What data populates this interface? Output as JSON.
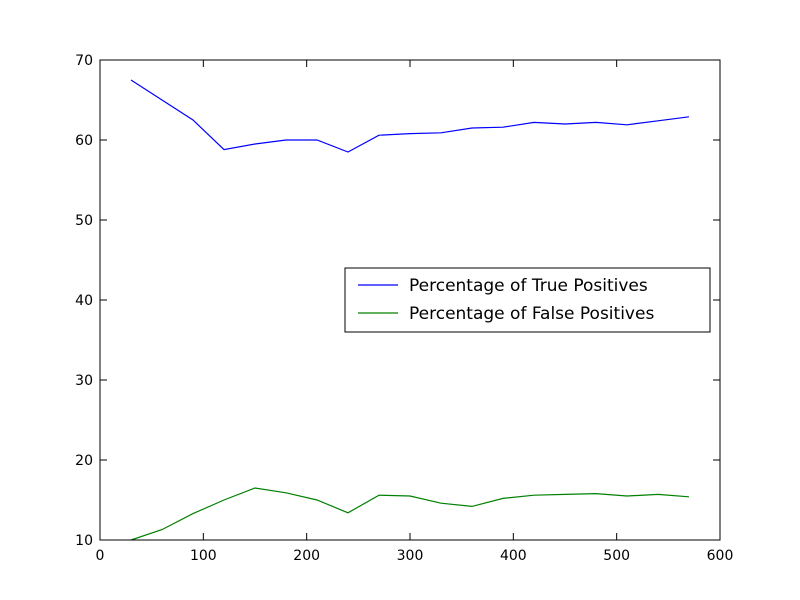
{
  "chart_data": {
    "type": "line",
    "title": "",
    "xlabel": "",
    "ylabel": "",
    "xlim": [
      0,
      600
    ],
    "ylim": [
      10,
      70
    ],
    "xticks": [
      0,
      100,
      200,
      300,
      400,
      500,
      600
    ],
    "yticks": [
      10,
      20,
      30,
      40,
      50,
      60,
      70
    ],
    "xtick_labels": [
      "0",
      "100",
      "200",
      "300",
      "400",
      "500",
      "600"
    ],
    "ytick_labels": [
      "10",
      "20",
      "30",
      "40",
      "50",
      "60",
      "70"
    ],
    "grid": false,
    "legend_position": "center-right",
    "x": [
      30,
      60,
      90,
      120,
      150,
      180,
      210,
      240,
      270,
      300,
      330,
      360,
      390,
      420,
      450,
      480,
      510,
      540,
      570
    ],
    "series": [
      {
        "name": "Percentage of True Positives",
        "color": "#0000ff",
        "values": [
          67.5,
          65.0,
          62.5,
          58.8,
          59.5,
          60.0,
          60.0,
          58.5,
          60.6,
          60.8,
          60.9,
          61.5,
          61.6,
          62.2,
          62.0,
          62.2,
          61.9,
          62.4,
          62.9
        ]
      },
      {
        "name": "Percentage of False Positives",
        "color": "#008000",
        "values": [
          10.0,
          11.3,
          13.3,
          15.0,
          16.5,
          15.9,
          15.0,
          13.4,
          15.6,
          15.5,
          14.6,
          14.2,
          15.2,
          15.6,
          15.7,
          15.8,
          15.5,
          15.7,
          15.4
        ]
      }
    ]
  }
}
